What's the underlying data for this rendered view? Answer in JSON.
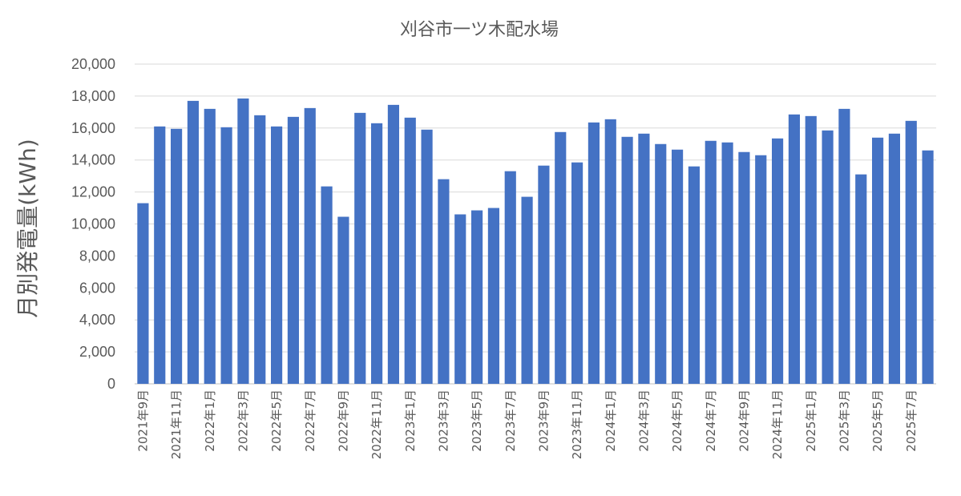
{
  "chart_data": {
    "type": "bar",
    "title": "刈谷市一ツ木配水場",
    "ylabel": "月別発電量(kWh)",
    "xlabel": "",
    "ylim": [
      0,
      20000
    ],
    "yticks": [
      "0",
      "2,000",
      "4,000",
      "6,000",
      "8,000",
      "10,000",
      "12,000",
      "14,000",
      "16,000",
      "18,000",
      "20,000"
    ],
    "grid": true,
    "bar_color": "#4472c4",
    "categories": [
      "2021年9月",
      "2021年10月",
      "2021年11月",
      "2021年12月",
      "2022年1月",
      "2022年2月",
      "2022年3月",
      "2022年4月",
      "2022年5月",
      "2022年6月",
      "2022年7月",
      "2022年8月",
      "2022年9月",
      "2022年10月",
      "2022年11月",
      "2022年12月",
      "2023年1月",
      "2023年2月",
      "2023年3月",
      "2023年4月",
      "2023年5月",
      "2023年6月",
      "2023年7月",
      "2023年8月",
      "2023年9月",
      "2023年10月",
      "2023年11月",
      "2023年12月",
      "2024年1月",
      "2024年2月",
      "2024年3月",
      "2024年4月",
      "2024年5月",
      "2024年6月",
      "2024年7月",
      "2024年8月",
      "2024年9月",
      "2024年10月",
      "2024年11月",
      "2024年12月",
      "2025年1月",
      "2025年2月",
      "2025年3月",
      "2025年4月",
      "2025年5月",
      "2025年6月",
      "2025年7月",
      "2025年8月"
    ],
    "values": [
      11300,
      16100,
      15950,
      17700,
      17200,
      16050,
      17850,
      16800,
      16100,
      16700,
      17250,
      12350,
      10450,
      16950,
      16300,
      17450,
      16650,
      15900,
      12800,
      10600,
      10850,
      11000,
      13300,
      11700,
      13650,
      15750,
      13850,
      16350,
      16550,
      15450,
      15650,
      15000,
      14650,
      13600,
      15200,
      15100,
      14500,
      14300,
      15350,
      16850,
      16750,
      15850,
      17200,
      13100,
      15400,
      15650,
      16450,
      14600
    ],
    "label_every": 2
  }
}
